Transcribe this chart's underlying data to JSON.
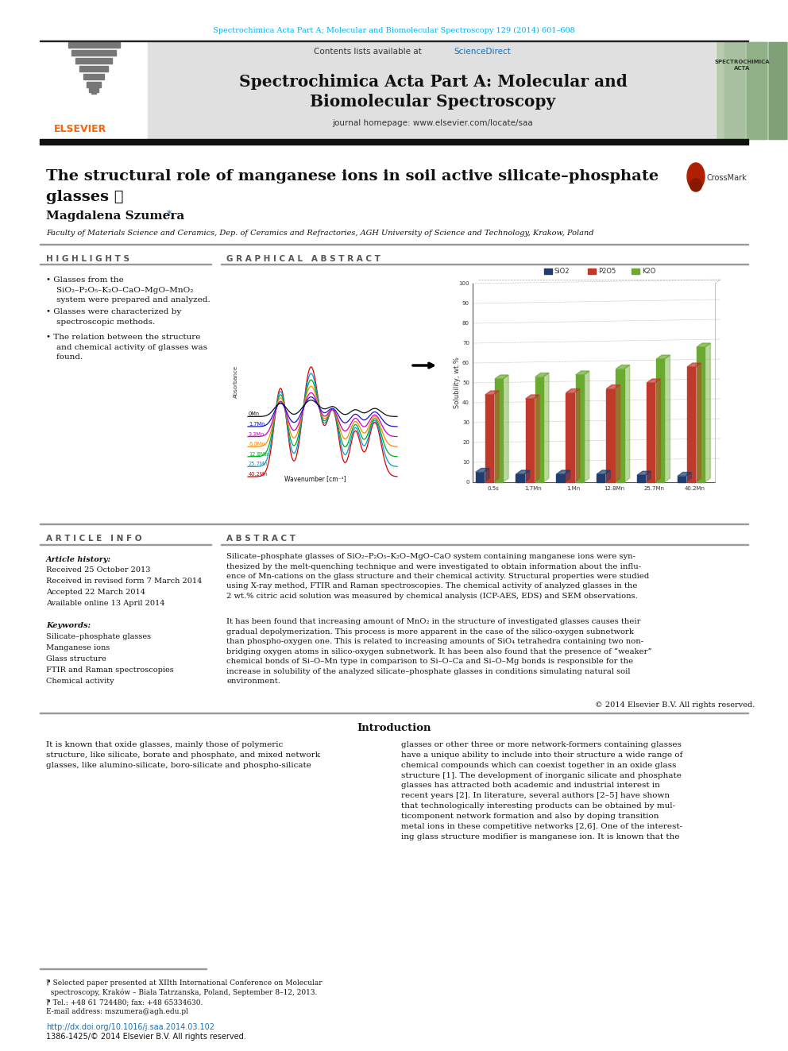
{
  "page_title_journal": "Spectrochimica Acta Part A; Molecular and Biomolecular Spectroscopy 129 (2014) 601–608",
  "journal_name_line1": "Spectrochimica Acta Part A: Molecular and",
  "journal_name_line2": "Biomolecular Spectroscopy",
  "homepage_text": "journal homepage: www.elsevier.com/locate/saa",
  "article_title_line1": "The structural role of manganese ions in soil active silicate–phosphate",
  "article_title_line2": "glasses ☆",
  "author": "Magdalena Szumera",
  "affiliation": "Faculty of Materials Science and Ceramics, Dep. of Ceramics and Refractories, AGH University of Science and Technology, Krakow, Poland",
  "highlights_title": "H I G H L I G H T S",
  "highlight1": "Glasses from the\n  SiO₂–P₂O₅–K₂O–CaO–MgO–MnO₂\n  system were prepared and analyzed.",
  "highlight2": "Glasses were characterized by\n  spectroscopic methods.",
  "highlight3": "The relation between the structure\n  and chemical activity of glasses was\n  found.",
  "graphical_abstract_title": "G R A P H I C A L   A B S T R A C T",
  "article_info_title": "A R T I C L E   I N F O",
  "abstract_title": "A B S T R A C T",
  "article_history_label": "Article history:",
  "received1": "Received 25 October 2013",
  "received2": "Received in revised form 7 March 2014",
  "accepted": "Accepted 22 March 2014",
  "available": "Available online 13 April 2014",
  "keywords_label": "Keywords:",
  "keywords": [
    "Silicate–phosphate glasses",
    "Manganese ions",
    "Glass structure",
    "FTIR and Raman spectroscopies",
    "Chemical activity"
  ],
  "abstract_p1": "Silicate–phosphate glasses of SiO₂–P₂O₅–K₂O–MgO–CaO system containing manganese ions were syn-\nthesized by the melt-quenching technique and were investigated to obtain information about the influ-\nence of Mn-cations on the glass structure and their chemical activity. Structural properties were studied\nusing X-ray method, FTIR and Raman spectroscopies. The chemical activity of analyzed glasses in the\n2 wt.% citric acid solution was measured by chemical analysis (ICP-AES, EDS) and SEM observations.",
  "abstract_p2": "It has been found that increasing amount of MnO₂ in the structure of investigated glasses causes their\ngradual depolymerization. This process is more apparent in the case of the silico-oxygen subnetwork\nthan phospho-oxygen one. This is related to increasing amounts of SiO₄ tetrahedra containing two non-\nbridging oxygen atoms in silico-oxygen subnetwork. It has been also found that the presence of “weaker”\nchemical bonds of Si–O–Mn type in comparison to Si–O–Ca and Si–O–Mg bonds is responsible for the\nincrease in solubility of the analyzed silicate–phosphate glasses in conditions simulating natural soil\nenvironment.",
  "copyright": "© 2014 Elsevier B.V. All rights reserved.",
  "intro_title": "Introduction",
  "intro_left": "It is known that oxide glasses, mainly those of polymeric\nstructure, like silicate, borate and phosphate, and mixed network\nglasses, like alumino-silicate, boro-silicate and phospho-silicate",
  "intro_right": "glasses or other three or more network-formers containing glasses\nhave a unique ability to include into their structure a wide range of\nchemical compounds which can coexist together in an oxide glass\nstructure [1]. The development of inorganic silicate and phosphate\nglasses has attracted both academic and industrial interest in\nrecent years [2]. In literature, several authors [2–5] have shown\nthat technologically interesting products can be obtained by mul-\nticomponent network formation and also by doping transition\nmetal ions in these competitive networks [2,6]. One of the interest-\ning glass structure modifier is manganese ion. It is known that the",
  "footnote_star": "⁋ Selected paper presented at XIIth International Conference on Molecular\n  spectroscopy, Kraków – Biała Tatrzanska, Poland, September 8–12, 2013.",
  "footnote_tel": "⁋ Tel.: +48 61 724480; fax: +48 65334630.",
  "footnote_email": "E-mail address: mszumera@agh.edu.pl",
  "doi": "http://dx.doi.org/10.1016/j.saa.2014.03.102",
  "issn": "1386-1425/© 2014 Elsevier B.V. All rights reserved.",
  "cyan": "#00AEEF",
  "link_blue": "#1a6eb5",
  "orange": "#FF6200",
  "header_gray": "#e0e0e0",
  "dark": "#111111",
  "gray_rule": "#999999",
  "section_head_gray": "#555555",
  "cover_green": "#b8ccb0"
}
